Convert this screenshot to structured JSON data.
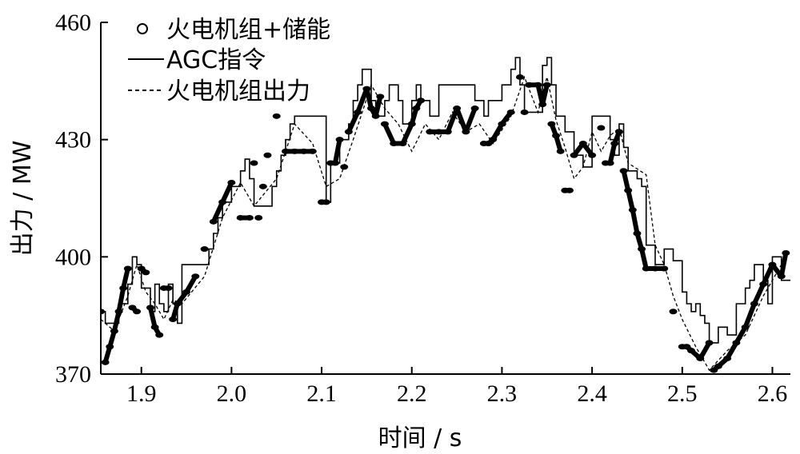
{
  "chart_data": {
    "type": "line",
    "title": "",
    "xlabel": "时间 / s",
    "ylabel": "出力 / MW",
    "xlim": [
      1.855,
      2.62
    ],
    "ylim": [
      370,
      460
    ],
    "xticks": [
      1.9,
      2.0,
      2.1,
      2.2,
      2.3,
      2.4,
      2.5,
      2.6
    ],
    "xtick_labels": [
      "1.9",
      "2.0",
      "2.1",
      "2.2",
      "2.3",
      "2.4",
      "2.5",
      "2.6"
    ],
    "yticks": [
      370,
      400,
      430,
      460
    ],
    "ytick_labels": [
      "370",
      "400",
      "430",
      "460"
    ],
    "grid": false,
    "legend_position": "top-left",
    "series": [
      {
        "name": "火电机组+储能",
        "style": "markers",
        "color": "#000000",
        "x": [
          1.855,
          1.86,
          1.865,
          1.87,
          1.875,
          1.88,
          1.885,
          1.89,
          1.895,
          1.9,
          1.905,
          1.91,
          1.915,
          1.92,
          1.925,
          1.93,
          1.935,
          1.94,
          1.95,
          1.96,
          1.97,
          1.98,
          1.99,
          2.0,
          2.01,
          2.02,
          2.025,
          2.03,
          2.035,
          2.04,
          2.05,
          2.06,
          2.07,
          2.08,
          2.09,
          2.1,
          2.105,
          2.11,
          2.115,
          2.12,
          2.125,
          2.13,
          2.14,
          2.15,
          2.155,
          2.16,
          2.165,
          2.17,
          2.18,
          2.19,
          2.2,
          2.205,
          2.21,
          2.22,
          2.23,
          2.24,
          2.25,
          2.26,
          2.27,
          2.28,
          2.285,
          2.29,
          2.3,
          2.31,
          2.32,
          2.325,
          2.33,
          2.34,
          2.345,
          2.35,
          2.355,
          2.36,
          2.365,
          2.37,
          2.375,
          2.38,
          2.39,
          2.4,
          2.41,
          2.415,
          2.42,
          2.425,
          2.43,
          2.435,
          2.44,
          2.445,
          2.45,
          2.455,
          2.46,
          2.47,
          2.48,
          2.49,
          2.5,
          2.505,
          2.51,
          2.52,
          2.53,
          2.535,
          2.54,
          2.55,
          2.56,
          2.57,
          2.58,
          2.59,
          2.6,
          2.61,
          2.615
        ],
        "y": [
          386,
          373,
          377,
          381,
          386,
          392,
          397,
          387,
          386,
          397,
          396,
          387,
          382,
          380,
          392,
          392,
          384,
          388,
          391,
          395,
          402,
          409,
          414,
          419,
          410,
          410,
          424,
          410,
          418,
          426,
          436,
          427,
          427,
          427,
          427,
          414,
          414,
          424,
          424,
          430,
          423,
          432,
          437,
          443,
          438,
          436,
          441,
          434,
          429,
          429,
          434,
          438,
          440,
          432,
          432,
          432,
          438,
          432,
          438,
          429,
          429,
          430,
          434,
          437,
          446,
          437,
          444,
          444,
          439,
          444,
          434,
          431,
          427,
          417,
          417,
          426,
          429,
          426,
          433,
          424,
          424,
          429,
          432,
          422,
          417,
          412,
          406,
          402,
          397,
          397,
          397,
          386,
          377,
          377,
          376,
          374,
          378,
          371,
          372,
          374,
          378,
          382,
          388,
          393,
          398,
          395,
          401
        ]
      },
      {
        "name": "AGC指令",
        "style": "step",
        "color": "#000000",
        "x": [
          1.855,
          1.86,
          1.875,
          1.885,
          1.89,
          1.895,
          1.9,
          1.905,
          1.91,
          1.915,
          1.92,
          1.925,
          1.93,
          1.935,
          1.94,
          1.945,
          1.97,
          1.975,
          1.98,
          1.985,
          1.99,
          2.0,
          2.01,
          2.015,
          2.02,
          2.025,
          2.045,
          2.05,
          2.055,
          2.06,
          2.065,
          2.07,
          2.105,
          2.11,
          2.12,
          2.13,
          2.135,
          2.14,
          2.145,
          2.155,
          2.16,
          2.17,
          2.175,
          2.185,
          2.19,
          2.2,
          2.205,
          2.21,
          2.22,
          2.23,
          2.26,
          2.27,
          2.28,
          2.285,
          2.3,
          2.31,
          2.315,
          2.32,
          2.325,
          2.335,
          2.345,
          2.35,
          2.355,
          2.36,
          2.37,
          2.38,
          2.39,
          2.4,
          2.41,
          2.42,
          2.425,
          2.43,
          2.435,
          2.44,
          2.445,
          2.45,
          2.455,
          2.46,
          2.47,
          2.48,
          2.49,
          2.5,
          2.505,
          2.51,
          2.515,
          2.52,
          2.525,
          2.53,
          2.54,
          2.55,
          2.56,
          2.57,
          2.575,
          2.58,
          2.59,
          2.595,
          2.6,
          2.61
        ],
        "y": [
          386,
          383,
          388,
          393,
          400,
          398,
          392,
          392,
          386,
          393,
          388,
          386,
          393,
          388,
          383,
          398,
          398,
          402,
          406,
          410,
          414,
          418,
          422,
          425,
          420,
          413,
          418,
          422,
          426,
          430,
          434,
          436,
          414,
          424,
          430,
          434,
          440,
          444,
          448,
          440,
          436,
          440,
          444,
          440,
          434,
          440,
          444,
          440,
          436,
          444,
          444,
          440,
          436,
          440,
          444,
          448,
          451,
          444,
          437,
          437,
          449,
          451,
          444,
          436,
          432,
          426,
          423,
          436,
          436,
          430,
          426,
          434,
          428,
          422,
          422,
          420,
          418,
          403,
          398,
          402,
          399,
          391,
          388,
          386,
          388,
          385,
          383,
          378,
          382,
          380,
          388,
          392,
          394,
          398,
          394,
          388,
          400,
          394
        ]
      },
      {
        "name": "火电机组出力",
        "style": "dashed",
        "color": "#000000",
        "x": [
          1.855,
          1.87,
          1.885,
          1.895,
          1.905,
          1.915,
          1.925,
          1.935,
          1.945,
          1.97,
          1.99,
          2.01,
          2.025,
          2.05,
          2.07,
          2.09,
          2.105,
          2.12,
          2.135,
          2.155,
          2.17,
          2.185,
          2.2,
          2.215,
          2.23,
          2.245,
          2.26,
          2.275,
          2.29,
          2.31,
          2.325,
          2.34,
          2.35,
          2.36,
          2.37,
          2.38,
          2.39,
          2.4,
          2.41,
          2.42,
          2.43,
          2.44,
          2.46,
          2.47,
          2.48,
          2.49,
          2.5,
          2.515,
          2.53,
          2.55,
          2.57,
          2.59,
          2.61
        ],
        "y": [
          384,
          381,
          390,
          398,
          391,
          388,
          384,
          389,
          388,
          395,
          410,
          419,
          413,
          420,
          434,
          429,
          418,
          420,
          430,
          444,
          438,
          434,
          427,
          434,
          430,
          437,
          432,
          434,
          429,
          436,
          446,
          437,
          446,
          435,
          428,
          420,
          423,
          432,
          427,
          431,
          433,
          424,
          421,
          403,
          398,
          390,
          384,
          377,
          371,
          376,
          380,
          390,
          398
        ]
      }
    ]
  }
}
